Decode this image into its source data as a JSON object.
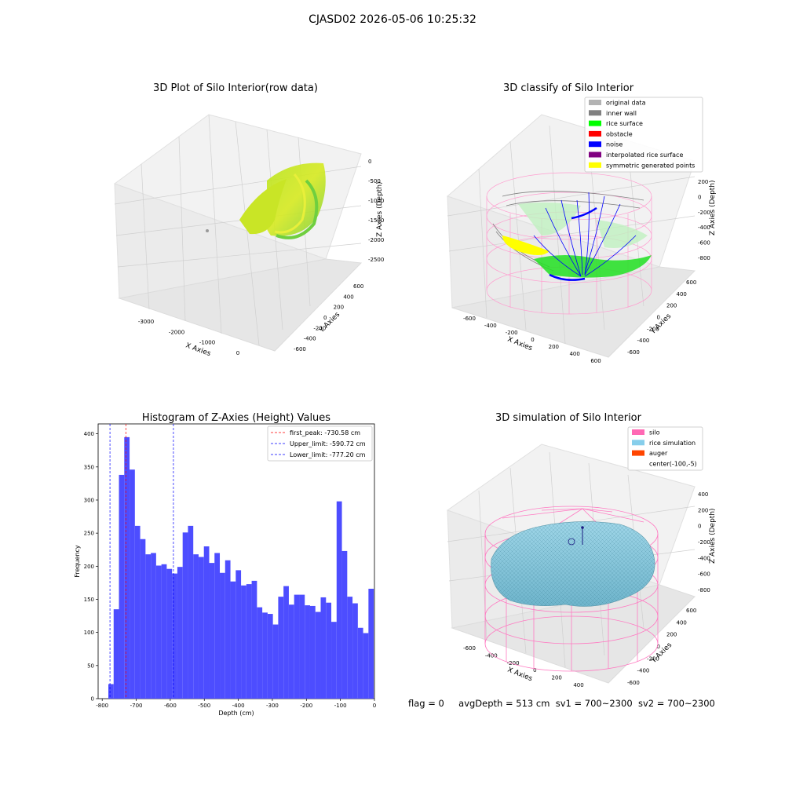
{
  "suptitle": "CJASD02 2026-05-06 10:25:32",
  "status": {
    "flag": "flag = 0",
    "avg_depth": "avgDepth = 513 cm",
    "sv1": "sv1 = 700~2300",
    "sv2": "sv2 = 700~2300"
  },
  "colors": {
    "original_data": "#b3b3b3",
    "inner_wall": "#808080",
    "rice_surface": "#00ff00",
    "obstacle": "#ff0000",
    "noise": "#0000ff",
    "interpolated_rice_surface": "#800080",
    "symmetric_generated_points": "#ffff00",
    "silo": "#ff69b4",
    "rice_simulation": "#87ceeb",
    "auger": "#ff4500",
    "hist_bar": "#4d4dff"
  },
  "chart_data": [
    {
      "type": "scatter",
      "title": "3D Plot of Silo Interior(row data)",
      "xlabel": "X Axies",
      "ylabel": "Y Axies",
      "zlabel": "Z Axies (Depth)",
      "x_ticks": [
        "-3000",
        "-2000",
        "-1000",
        "0"
      ],
      "y_ticks": [
        "-600",
        "-400",
        "-200",
        "0",
        "200",
        "400",
        "600"
      ],
      "z_ticks": [
        "0",
        "-500",
        "-1000",
        "-1500",
        "-2000",
        "-2500"
      ]
    },
    {
      "type": "scatter",
      "title": "3D classify of Silo Interior",
      "xlabel": "X Axies",
      "ylabel": "Y Axies",
      "zlabel": "Z Axies (Depth)",
      "x_ticks": [
        "-600",
        "-400",
        "-200",
        "0",
        "200",
        "400",
        "600"
      ],
      "y_ticks": [
        "-600",
        "-400",
        "-200",
        "0",
        "200",
        "400",
        "600"
      ],
      "z_ticks": [
        "200",
        "0",
        "-200",
        "-400",
        "-600",
        "-800"
      ],
      "legend": [
        "original data",
        "inner wall",
        "rice surface",
        "obstacle",
        "noise",
        "interpolated rice surface",
        "symmetric generated points"
      ],
      "legend_position": "top-right"
    },
    {
      "type": "bar",
      "title": "Histogram of Z-Axies (Height) Values",
      "xlabel": "Depth (cm)",
      "ylabel": "Frequency",
      "xlim": [
        -812,
        0
      ],
      "ylim": [
        0,
        415
      ],
      "x_ticks": [
        -800,
        -700,
        -600,
        -500,
        -400,
        -300,
        -200,
        -100,
        0
      ],
      "y_ticks": [
        0,
        50,
        100,
        150,
        200,
        250,
        300,
        350,
        400
      ],
      "bin_start": -782,
      "bin_width": 15.6,
      "values": [
        22,
        135,
        338,
        395,
        346,
        261,
        241,
        218,
        220,
        201,
        203,
        196,
        189,
        199,
        251,
        261,
        218,
        214,
        230,
        205,
        220,
        190,
        209,
        177,
        194,
        171,
        173,
        178,
        138,
        130,
        128,
        112,
        154,
        170,
        142,
        157,
        157,
        141,
        140,
        131,
        153,
        145,
        116,
        298,
        223,
        154,
        144,
        107,
        99,
        166
      ],
      "lines": [
        {
          "label": "first_peak: -730.58 cm",
          "x": -730.58,
          "color": "#ff0000"
        },
        {
          "label": "Upper_limit: -590.72 cm",
          "x": -590.72,
          "color": "#0000ff"
        },
        {
          "label": "Lower_limit: -777.20 cm",
          "x": -777.2,
          "color": "#0000ff"
        }
      ],
      "legend_position": "top-right"
    },
    {
      "type": "area",
      "title": "3D simulation of Silo Interior",
      "xlabel": "X Axies",
      "ylabel": "Y Axies",
      "zlabel": "Z Axies (Depth)",
      "x_ticks": [
        "-600",
        "-400",
        "-200",
        "0",
        "200",
        "400"
      ],
      "y_ticks": [
        "-600",
        "-400",
        "-200",
        "0",
        "200",
        "400",
        "600"
      ],
      "z_ticks": [
        "400",
        "200",
        "0",
        "-200",
        "-400",
        "-600",
        "-800"
      ],
      "legend": [
        "silo",
        "rice simulation",
        "auger",
        "center(-100,-5)"
      ],
      "legend_position": "top-right"
    }
  ]
}
